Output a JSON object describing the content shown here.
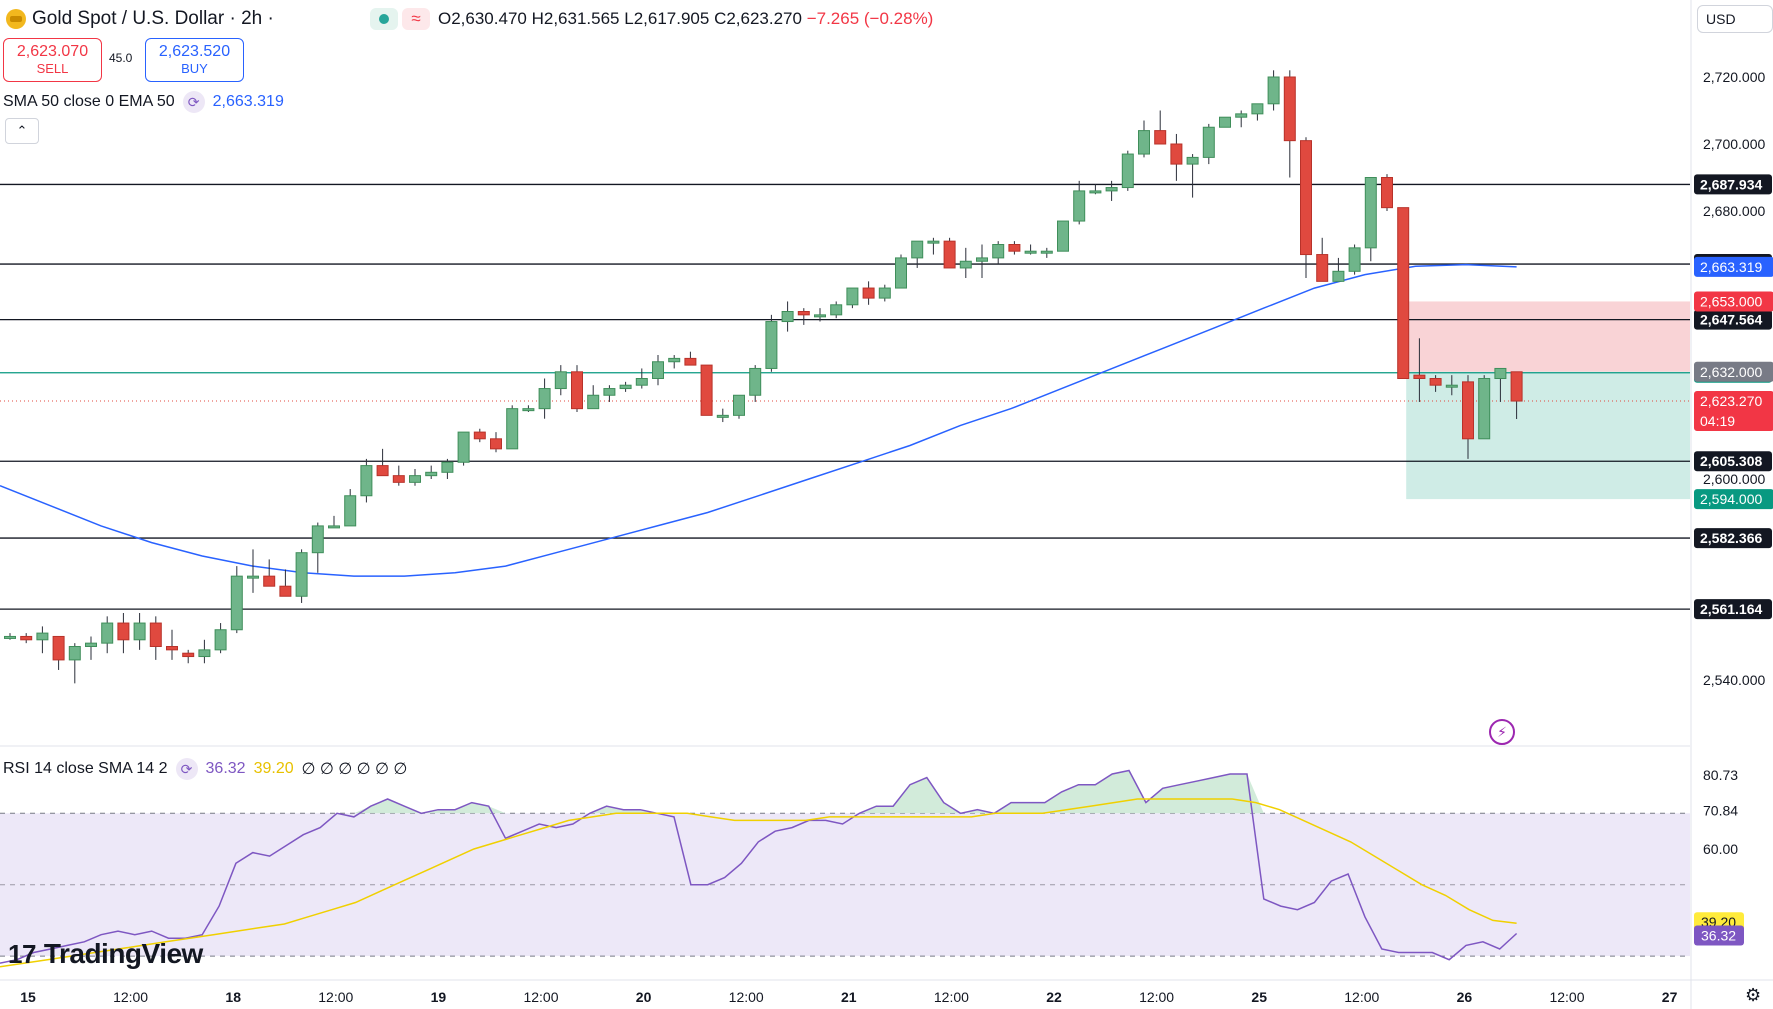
{
  "header": {
    "symbol_title": "Gold Spot / U.S. Dollar · 2h ·",
    "open": "O2,630.470",
    "high": "H2,631.565",
    "low": "L2,617.905",
    "close": "C2,623.270",
    "change": "−7.265 (−0.28%)",
    "status_icon": "market-open-dot",
    "wave_icon": "≈"
  },
  "trade": {
    "sell_price": "2,623.070",
    "sell_label": "SELL",
    "spread": "45.0",
    "buy_price": "2,623.520",
    "buy_label": "BUY"
  },
  "indicators": {
    "sma_label": "SMA 50 close 0 EMA 50",
    "sma_value": "2,663.319",
    "rsi_label": "RSI 14 close SMA 14 2",
    "rsi_value": "36.32",
    "rsi_sma_value": "39.20",
    "rsi_extra": "∅ ∅ ∅ ∅ ∅ ∅"
  },
  "currency": "USD",
  "branding": "TradingView",
  "colors": {
    "up": "#26a69a",
    "up_body": "#6fb58a",
    "down": "#e0493f",
    "ma": "#2962ff",
    "rsi": "#7e57c2",
    "rsi_sma": "#f0d000",
    "grid_line": "#131722",
    "green_line": "#089981",
    "tp_zone": "#cfece6",
    "sl_zone": "#f9d3d6"
  },
  "chart_data": {
    "type": "candlestick",
    "timeframe": "2h",
    "x_ticks": [
      "15",
      "12:00",
      "18",
      "12:00",
      "19",
      "12:00",
      "20",
      "12:00",
      "21",
      "12:00",
      "22",
      "12:00",
      "25",
      "12:00",
      "26",
      "12:00",
      "27"
    ],
    "y_ticks": [
      "2,720.000",
      "2,700.000",
      "2,680.000",
      "2,600.000",
      "2,540.000"
    ],
    "ylim": [
      2526,
      2735
    ],
    "candles": [
      [
        2553,
        2554,
        2552,
        2553
      ],
      [
        2553,
        2554,
        2551,
        2552
      ],
      [
        2552,
        2556,
        2548,
        2554
      ],
      [
        2553,
        2553,
        2543,
        2546
      ],
      [
        2546,
        2551,
        2539,
        2550
      ],
      [
        2550,
        2553,
        2546,
        2551
      ],
      [
        2551,
        2559,
        2548,
        2557
      ],
      [
        2557,
        2560,
        2548,
        2552
      ],
      [
        2552,
        2560,
        2549,
        2557
      ],
      [
        2557,
        2559,
        2546,
        2550
      ],
      [
        2550,
        2555,
        2546,
        2549
      ],
      [
        2548,
        2549,
        2545,
        2547
      ],
      [
        2547,
        2552,
        2545,
        2549
      ],
      [
        2549,
        2557,
        2548,
        2555
      ],
      [
        2555,
        2574,
        2554,
        2571
      ],
      [
        2571,
        2579,
        2566,
        2571
      ],
      [
        2571,
        2576,
        2569,
        2568
      ],
      [
        2568,
        2573,
        2565,
        2565
      ],
      [
        2565,
        2579,
        2563,
        2578
      ],
      [
        2578,
        2587,
        2572,
        2586
      ],
      [
        2586,
        2589,
        2586,
        2586
      ],
      [
        2586,
        2597,
        2586,
        2595
      ],
      [
        2595,
        2606,
        2593,
        2604
      ],
      [
        2604,
        2609,
        2601,
        2601
      ],
      [
        2601,
        2604,
        2598,
        2599
      ],
      [
        2599,
        2603,
        2598,
        2601
      ],
      [
        2601,
        2604,
        2600,
        2602
      ],
      [
        2602,
        2606,
        2600,
        2605
      ],
      [
        2605,
        2614,
        2604,
        2614
      ],
      [
        2614,
        2615,
        2611,
        2612
      ],
      [
        2612,
        2614,
        2608,
        2609
      ],
      [
        2609,
        2622,
        2609,
        2621
      ],
      [
        2621,
        2622,
        2620,
        2621
      ],
      [
        2621,
        2630,
        2618,
        2627
      ],
      [
        2627,
        2634,
        2625,
        2632
      ],
      [
        2632,
        2634,
        2620,
        2621
      ],
      [
        2621,
        2628,
        2621,
        2625
      ],
      [
        2625,
        2628,
        2623,
        2627
      ],
      [
        2627,
        2629,
        2626,
        2628
      ],
      [
        2628,
        2633,
        2627,
        2630
      ],
      [
        2630,
        2637,
        2628,
        2635
      ],
      [
        2635,
        2637,
        2633,
        2636
      ],
      [
        2636,
        2638,
        2634,
        2634
      ],
      [
        2634,
        2634,
        2619,
        2619
      ],
      [
        2619,
        2621,
        2617,
        2619
      ],
      [
        2619,
        2625,
        2618,
        2625
      ],
      [
        2625,
        2634,
        2623,
        2633
      ],
      [
        2633,
        2649,
        2632,
        2647
      ],
      [
        2647,
        2653,
        2644,
        2650
      ],
      [
        2650,
        2651,
        2646,
        2649
      ],
      [
        2649,
        2651,
        2647,
        2649
      ],
      [
        2649,
        2653,
        2648,
        2652
      ],
      [
        2652,
        2656,
        2651,
        2657
      ],
      [
        2657,
        2659,
        2652,
        2654
      ],
      [
        2654,
        2658,
        2653,
        2657
      ],
      [
        2657,
        2667,
        2657,
        2666
      ],
      [
        2666,
        2671,
        2663,
        2671
      ],
      [
        2671,
        2672,
        2667,
        2671
      ],
      [
        2671,
        2672,
        2664,
        2663
      ],
      [
        2663,
        2669,
        2660,
        2665
      ],
      [
        2665,
        2670,
        2660,
        2666
      ],
      [
        2666,
        2671,
        2664,
        2670
      ],
      [
        2670,
        2671,
        2667,
        2668
      ],
      [
        2668,
        2670,
        2667,
        2668
      ],
      [
        2668,
        2669,
        2666,
        2668
      ],
      [
        2668,
        2677,
        2668,
        2677
      ],
      [
        2677,
        2689,
        2676,
        2686
      ],
      [
        2686,
        2688,
        2685,
        2686
      ],
      [
        2686,
        2689,
        2683,
        2687
      ],
      [
        2687,
        2698,
        2686,
        2697
      ],
      [
        2697,
        2707,
        2696,
        2704
      ],
      [
        2704,
        2710,
        2700,
        2700
      ],
      [
        2700,
        2703,
        2689,
        2694
      ],
      [
        2694,
        2697,
        2684,
        2696
      ],
      [
        2696,
        2706,
        2694,
        2705
      ],
      [
        2705,
        2708,
        2705,
        2708
      ],
      [
        2708,
        2710,
        2705,
        2709
      ],
      [
        2709,
        2712,
        2707,
        2712
      ],
      [
        2712,
        2722,
        2710,
        2720
      ],
      [
        2720,
        2722,
        2690,
        2701
      ],
      [
        2701,
        2702,
        2660,
        2667
      ],
      [
        2667,
        2672,
        2661,
        2659
      ],
      [
        2659,
        2666,
        2659,
        2662
      ],
      [
        2662,
        2670,
        2661,
        2669
      ],
      [
        2669,
        2690,
        2665,
        2690
      ],
      [
        2690,
        2691,
        2680,
        2681
      ],
      [
        2681,
        2681,
        2630,
        2630
      ],
      [
        2631,
        2642,
        2623,
        2630
      ],
      [
        2630,
        2631,
        2626,
        2628
      ],
      [
        2628,
        2631,
        2625,
        2628
      ],
      [
        2629,
        2631,
        2606,
        2612
      ],
      [
        2612,
        2631,
        2612,
        2630
      ],
      [
        2630,
        2632,
        2623,
        2633
      ],
      [
        2632,
        2632,
        2617.905,
        2623.27
      ]
    ],
    "sma50": [
      2598,
      2592,
      2586,
      2581,
      2577,
      2574,
      2572,
      2571,
      2571,
      2572,
      2574,
      2578,
      2582,
      2586,
      2590,
      2595,
      2600,
      2605,
      2610,
      2616,
      2621,
      2627,
      2633,
      2639,
      2645,
      2651,
      2657,
      2661,
      2663.5,
      2664,
      2663.319
    ],
    "levels": [
      {
        "value": 2687.934,
        "label": "2,687.934",
        "color": "#131722"
      },
      {
        "value": 2664.165,
        "label": "2,664.165",
        "color": "#131722"
      },
      {
        "value": 2647.564,
        "label": "2,647.564",
        "color": "#131722"
      },
      {
        "value": 2631.718,
        "label": "2,631.718",
        "color": "#089981"
      },
      {
        "value": 2605.308,
        "label": "2,605.308",
        "color": "#131722"
      },
      {
        "value": 2582.366,
        "label": "2,582.366",
        "color": "#131722"
      },
      {
        "value": 2561.164,
        "label": "2,561.164",
        "color": "#131722"
      }
    ],
    "price_tags": [
      {
        "value": 2663.319,
        "label": "2,663.319",
        "bg": "#2962ff"
      },
      {
        "value": 2653.0,
        "label": "2,653.000",
        "bg": "#f23645"
      },
      {
        "value": 2632.0,
        "label": "2,632.000",
        "bg": "#787b86"
      },
      {
        "value": 2623.27,
        "label": "2,623.270",
        "sub": "04:19",
        "bg": "#f23645"
      },
      {
        "value": 2594.0,
        "label": "2,594.000",
        "bg": "#089981"
      }
    ],
    "position": {
      "entry": 2632.0,
      "stop": 2653.0,
      "target": 2594.0
    },
    "rsi": {
      "ticks": [
        "80.73",
        "70.84",
        "60.00"
      ],
      "band": [
        30,
        70
      ],
      "ylim": [
        24,
        84
      ],
      "values": [
        28,
        29,
        31,
        32,
        33,
        34,
        36,
        37,
        36,
        37,
        35,
        35,
        36,
        44,
        56,
        59,
        58,
        61,
        64,
        66,
        70,
        69,
        72,
        74,
        72,
        70,
        71,
        71,
        73,
        72,
        63,
        65,
        67,
        66,
        67,
        70,
        72,
        71,
        71,
        70,
        69,
        50,
        50,
        52,
        56,
        62,
        65,
        66,
        68,
        68,
        67,
        70,
        72,
        72,
        78,
        80,
        73,
        70,
        71,
        70,
        73,
        73,
        73,
        76,
        78,
        78,
        81,
        82,
        73,
        77,
        78,
        79,
        80,
        81,
        81,
        46,
        44,
        43,
        45,
        51,
        53,
        41,
        32,
        31,
        31,
        31,
        29,
        33,
        34,
        32,
        36.32
      ],
      "sma": [
        27,
        28,
        29,
        30,
        31,
        32,
        33,
        34,
        35,
        36,
        37,
        38,
        39,
        41,
        43,
        45,
        48,
        51,
        54,
        57,
        60,
        62,
        64,
        66,
        68,
        69,
        70,
        70,
        70,
        70,
        69,
        68,
        68,
        68,
        68,
        69,
        69,
        69,
        69,
        69,
        69,
        69,
        70,
        70,
        70,
        71,
        72,
        73,
        74,
        74,
        74,
        74,
        74,
        73,
        71,
        68,
        65,
        62,
        58,
        54,
        50,
        47,
        43,
        40,
        39.2
      ]
    }
  }
}
